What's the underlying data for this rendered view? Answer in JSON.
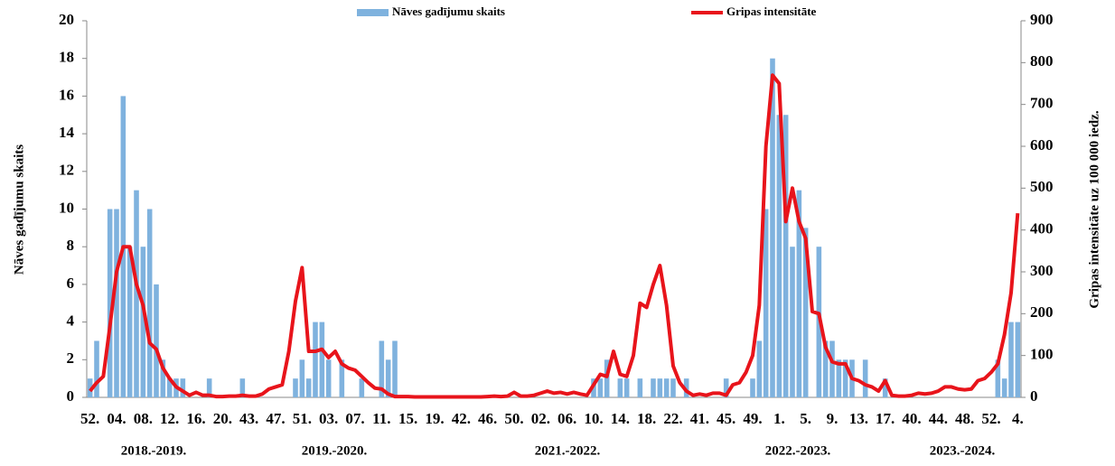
{
  "chart_data": {
    "type": "bar-line",
    "y_label": "Nāves gadījumu skaits",
    "y2_label": "Gripas intensitāte uz 100 000 iedz.",
    "seasons": [
      "2018.-2019.",
      "2019.-2020.",
      "2021.-2022.",
      "2022.-2023.",
      "2023.-2024."
    ],
    "categories": [
      "52.",
      null,
      null,
      null,
      "04.",
      null,
      null,
      null,
      "08.",
      null,
      null,
      null,
      "12.",
      null,
      null,
      null,
      "16.",
      null,
      null,
      null,
      "20.",
      null,
      null,
      null,
      "43.",
      null,
      null,
      null,
      "47.",
      null,
      null,
      null,
      "51.",
      null,
      null,
      null,
      "03.",
      null,
      null,
      null,
      "07.",
      null,
      null,
      null,
      "11.",
      null,
      null,
      null,
      "15.",
      null,
      null,
      null,
      "19.",
      null,
      null,
      null,
      "42.",
      null,
      null,
      null,
      "46.",
      null,
      null,
      null,
      "50.",
      null,
      null,
      null,
      "02.",
      null,
      null,
      null,
      "06.",
      null,
      null,
      null,
      "10.",
      null,
      null,
      null,
      "14.",
      null,
      null,
      null,
      "18.",
      null,
      null,
      null,
      "22.",
      null,
      null,
      null,
      "41.",
      null,
      null,
      null,
      "45.",
      null,
      null,
      null,
      "49.",
      null,
      null,
      null,
      "1.",
      null,
      null,
      null,
      "5.",
      null,
      null,
      null,
      "9.",
      null,
      null,
      null,
      "13.",
      null,
      null,
      null,
      "17.",
      null,
      null,
      null,
      "40.",
      null,
      null,
      null,
      "44.",
      null,
      null,
      null,
      "48.",
      null,
      null,
      null,
      "52.",
      null,
      null,
      null,
      "4."
    ],
    "series": [
      {
        "name": "Nāves gadījumu skaits",
        "kind": "bar",
        "color": "#7fb2de",
        "values": [
          1,
          3,
          0,
          10,
          10,
          16,
          8,
          11,
          8,
          10,
          6,
          2,
          1,
          1,
          1,
          0,
          0,
          0,
          1,
          0,
          0,
          0,
          0,
          1,
          0,
          0,
          0,
          0,
          0,
          0,
          0,
          1,
          2,
          1,
          4,
          4,
          2,
          0,
          2,
          0,
          0,
          1,
          0,
          0,
          3,
          2,
          3,
          0,
          0,
          0,
          0,
          0,
          0,
          0,
          0,
          0,
          0,
          0,
          0,
          0,
          0,
          0,
          0,
          0,
          0,
          0,
          0,
          0,
          0,
          0,
          0,
          0,
          0,
          0,
          0,
          0,
          1,
          1,
          2,
          0,
          1,
          1,
          0,
          1,
          0,
          1,
          1,
          1,
          1,
          0,
          1,
          0,
          0,
          0,
          0,
          0,
          1,
          0,
          0,
          0,
          1,
          3,
          10,
          18,
          15,
          15,
          8,
          11,
          9,
          0,
          8,
          3,
          3,
          2,
          2,
          2,
          0,
          2,
          0,
          0,
          1,
          0,
          0,
          0,
          0,
          0,
          0,
          0,
          0,
          0,
          0,
          0,
          0,
          0,
          0,
          0,
          0,
          2,
          1,
          4,
          4
        ]
      },
      {
        "name": "Gripas intensitāte",
        "kind": "line",
        "axis": "y2",
        "color": "#e8141b",
        "values": [
          15,
          35,
          50,
          170,
          300,
          360,
          360,
          270,
          220,
          130,
          115,
          70,
          45,
          25,
          15,
          5,
          12,
          5,
          5,
          2,
          2,
          3,
          3,
          5,
          3,
          3,
          8,
          20,
          25,
          30,
          110,
          230,
          310,
          110,
          110,
          115,
          95,
          110,
          80,
          70,
          65,
          50,
          35,
          22,
          20,
          8,
          2,
          2,
          2,
          1,
          1,
          1,
          1,
          1,
          1,
          1,
          1,
          1,
          1,
          1,
          2,
          3,
          2,
          3,
          12,
          3,
          3,
          5,
          10,
          15,
          10,
          12,
          8,
          12,
          8,
          5,
          30,
          55,
          50,
          110,
          55,
          50,
          100,
          225,
          215,
          270,
          315,
          220,
          75,
          35,
          15,
          5,
          8,
          5,
          10,
          10,
          5,
          30,
          35,
          60,
          100,
          220,
          600,
          770,
          750,
          420,
          500,
          420,
          380,
          205,
          200,
          120,
          85,
          80,
          80,
          45,
          40,
          30,
          25,
          15,
          40,
          5,
          3,
          3,
          5,
          10,
          8,
          10,
          15,
          25,
          25,
          20,
          18,
          20,
          40,
          45,
          60,
          80,
          150,
          250,
          440
        ]
      }
    ],
    "ylim": [
      0,
      20
    ],
    "yticks": [
      0,
      2,
      4,
      6,
      8,
      10,
      12,
      14,
      16,
      18,
      20
    ],
    "y2lim": [
      0,
      900
    ],
    "y2ticks": [
      0,
      100,
      200,
      300,
      400,
      500,
      600,
      700,
      800,
      900
    ]
  }
}
